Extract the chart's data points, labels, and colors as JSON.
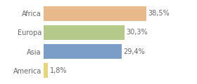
{
  "categories": [
    "Africa",
    "Europa",
    "Asia",
    "America"
  ],
  "values": [
    38.5,
    30.3,
    29.4,
    1.8
  ],
  "labels": [
    "38,5%",
    "30,3%",
    "29,4%",
    "1,8%"
  ],
  "bar_colors": [
    "#e8b98a",
    "#b5c98a",
    "#7b9ec8",
    "#e8d47a"
  ],
  "background_color": "#ffffff",
  "xlim": [
    0,
    45
  ],
  "bar_height": 0.78,
  "label_fontsize": 7.0,
  "tick_fontsize": 7.0,
  "label_color": "#666666",
  "grid_color": "#dddddd"
}
